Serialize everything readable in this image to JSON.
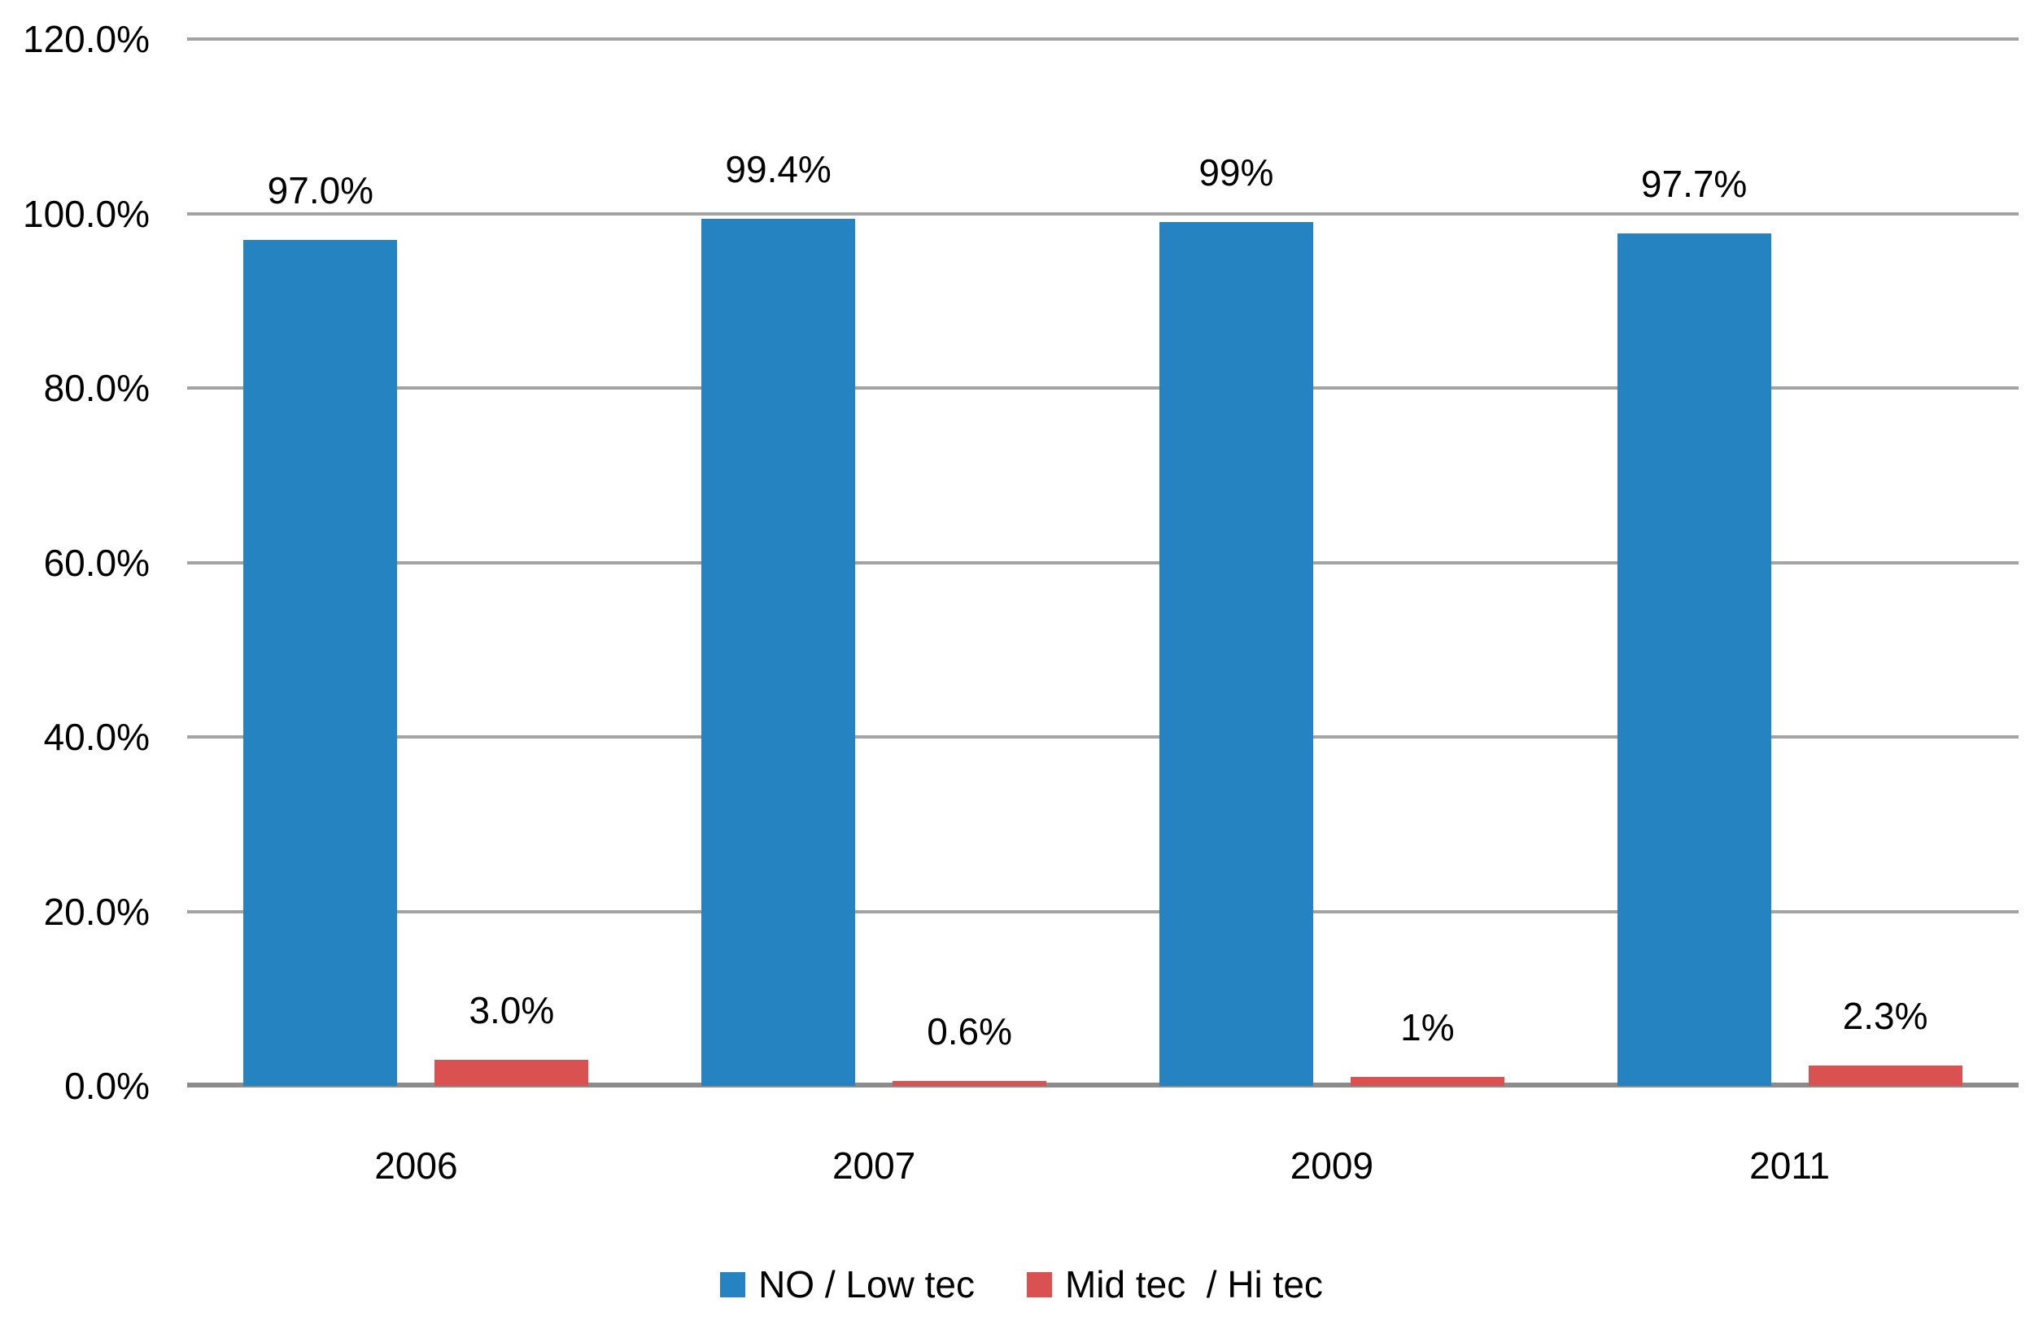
{
  "chart_data": {
    "type": "bar",
    "title": "",
    "categories": [
      "2006",
      "2007",
      "2009",
      "2011"
    ],
    "series": [
      {
        "name": "NO / Low tec",
        "color": "#2583c1",
        "values": [
          97.0,
          99.4,
          99,
          97.7
        ],
        "data_labels": [
          "97.0%",
          "99.4%",
          "99%",
          "97.7%"
        ]
      },
      {
        "name": "Mid tec  / Hi tec",
        "color": "#d95151",
        "values": [
          3.0,
          0.6,
          1,
          2.3
        ],
        "data_labels": [
          "3.0%",
          "0.6%",
          "1%",
          "2.3%"
        ]
      }
    ],
    "y_axis": {
      "tick_labels": [
        "0.0%",
        "20.0%",
        "40.0%",
        "60.0%",
        "80.0%",
        "100.0%",
        "120.0%"
      ],
      "min": 0,
      "max": 120,
      "step": 20
    },
    "xlabel": "",
    "ylabel": "",
    "ylim": [
      0,
      120
    ],
    "grid": "horizontal",
    "legend_position": "bottom"
  },
  "colors": {
    "series_blue": "#2583c1",
    "series_red": "#d95151",
    "gridline": "#a3a3a3",
    "axis_line": "#8c8c8c",
    "text": "#000000",
    "background": "#ffffff"
  }
}
